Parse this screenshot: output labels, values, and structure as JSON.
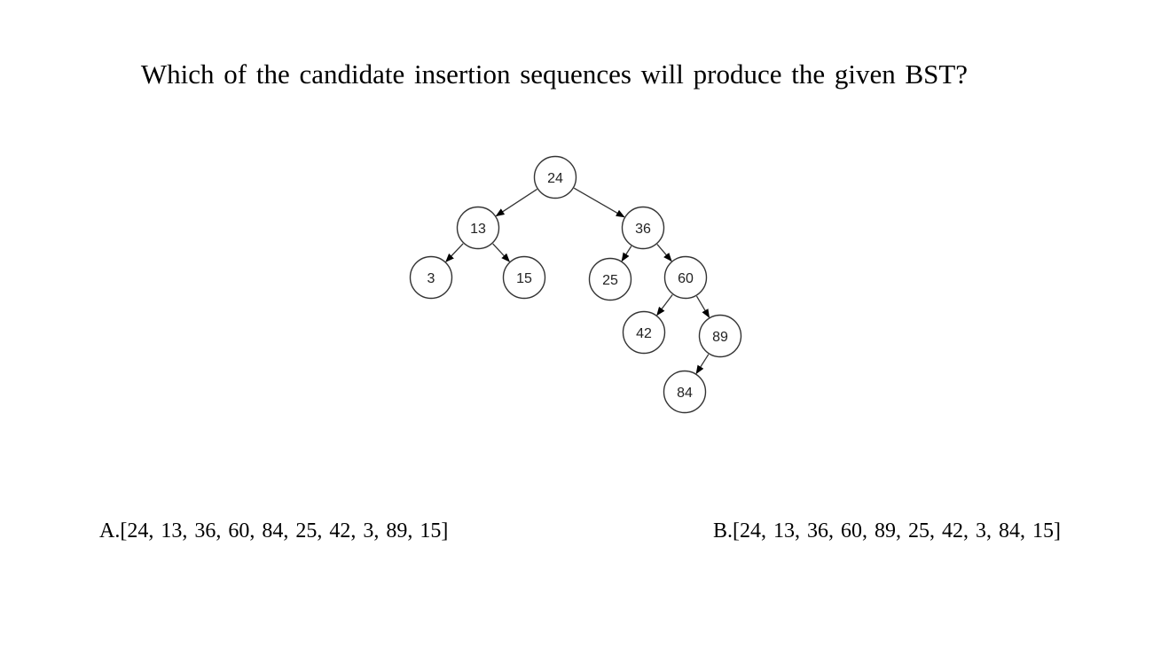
{
  "question": "Which of the candidate insertion sequences will produce the given BST?",
  "tree": {
    "nodes": [
      {
        "id": "n24",
        "label": "24"
      },
      {
        "id": "n13",
        "label": "13"
      },
      {
        "id": "n36",
        "label": "36"
      },
      {
        "id": "n3",
        "label": "3"
      },
      {
        "id": "n15",
        "label": "15"
      },
      {
        "id": "n25",
        "label": "25"
      },
      {
        "id": "n60",
        "label": "60"
      },
      {
        "id": "n42",
        "label": "42"
      },
      {
        "id": "n89",
        "label": "89"
      },
      {
        "id": "n84",
        "label": "84"
      }
    ],
    "edges": [
      {
        "from": "n24",
        "to": "n13"
      },
      {
        "from": "n24",
        "to": "n36"
      },
      {
        "from": "n13",
        "to": "n3"
      },
      {
        "from": "n13",
        "to": "n15"
      },
      {
        "from": "n36",
        "to": "n25"
      },
      {
        "from": "n36",
        "to": "n60"
      },
      {
        "from": "n60",
        "to": "n42"
      },
      {
        "from": "n60",
        "to": "n89"
      },
      {
        "from": "n89",
        "to": "n84"
      }
    ]
  },
  "options": {
    "a": "A.[24, 13, 36, 60, 84, 25, 42, 3, 89, 15]",
    "b": "B.[24, 13, 36, 60, 89, 25, 42, 3, 84, 15]"
  }
}
